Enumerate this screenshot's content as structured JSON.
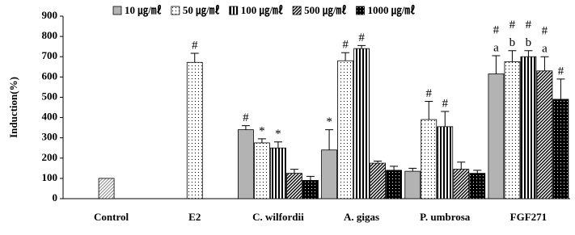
{
  "chart_data": {
    "type": "bar",
    "y_label": "Induction(%)",
    "categories": [
      "Control",
      "E2",
      "C. wilfordii",
      "A. gigas",
      "P. umbrosa",
      "FGF271"
    ],
    "control": {
      "value": 100,
      "color": "#888888",
      "pattern": "hatch"
    },
    "series": [
      {
        "name": "10 ㎍/㎖",
        "color": "#b3b3b3",
        "pattern": "solid",
        "values": [
          null,
          null,
          340,
          240,
          135,
          615
        ],
        "errors": [
          null,
          null,
          20,
          100,
          15,
          90
        ],
        "annotations": [
          [],
          [],
          [
            "#"
          ],
          [
            "*"
          ],
          [],
          [
            "a",
            "#"
          ]
        ]
      },
      {
        "name": "50 ㎍/㎖",
        "color": "#000000",
        "pattern": "dots",
        "values": [
          null,
          672,
          275,
          680,
          390,
          675
        ],
        "errors": [
          null,
          45,
          20,
          40,
          90,
          55
        ],
        "annotations": [
          [],
          [
            "#"
          ],
          [
            "*"
          ],
          [
            "#"
          ],
          [
            "#"
          ],
          [
            "b",
            "#"
          ]
        ]
      },
      {
        "name": "100 ㎍/㎖",
        "color": "#000000",
        "pattern": "vertical",
        "values": [
          null,
          null,
          250,
          740,
          355,
          700
        ],
        "errors": [
          null,
          null,
          30,
          15,
          75,
          30
        ],
        "annotations": [
          [],
          [],
          [
            "*"
          ],
          [
            "#"
          ],
          [
            "#"
          ],
          [
            "b",
            "#"
          ]
        ]
      },
      {
        "name": "500 ㎍/㎖",
        "color": "#000000",
        "pattern": "diagonal",
        "values": [
          null,
          null,
          125,
          175,
          145,
          630
        ],
        "errors": [
          null,
          null,
          20,
          10,
          35,
          70
        ],
        "annotations": [
          [],
          [],
          [],
          [],
          [],
          [
            "a",
            "#"
          ]
        ]
      },
      {
        "name": "1000 ㎍/㎖",
        "color": "#000000",
        "pattern": "dense",
        "values": [
          null,
          null,
          90,
          140,
          125,
          490
        ],
        "errors": [
          null,
          null,
          20,
          20,
          15,
          100
        ],
        "annotations": [
          [],
          [],
          [],
          [],
          [],
          [
            "#"
          ]
        ]
      }
    ],
    "ylim": [
      0,
      900
    ],
    "yticks": [
      0,
      100,
      200,
      300,
      400,
      500,
      600,
      700,
      800,
      900
    ]
  }
}
